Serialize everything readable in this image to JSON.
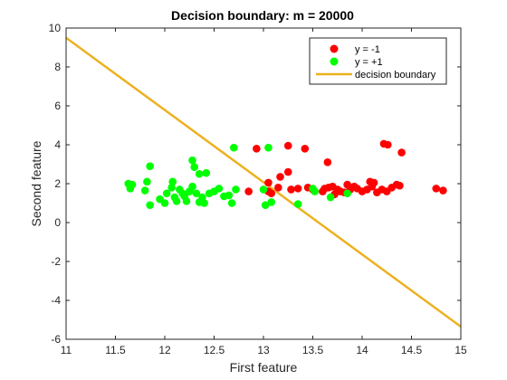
{
  "chart_data": {
    "type": "scatter",
    "title": "Decision boundary: m = 20000",
    "xlabel": "First feature",
    "ylabel": "Second feature",
    "xlim": [
      11,
      15
    ],
    "ylim": [
      -6,
      10
    ],
    "xticks": [
      11,
      11.5,
      12,
      12.5,
      13,
      13.5,
      14,
      14.5,
      15
    ],
    "yticks": [
      -6,
      -4,
      -2,
      0,
      2,
      4,
      6,
      8,
      10
    ],
    "grid": false,
    "legend_position": "top-right",
    "series": [
      {
        "name": "y = -1",
        "color": "#ff0000",
        "points": [
          [
            12.85,
            1.6
          ],
          [
            12.93,
            3.8
          ],
          [
            13.05,
            2.05
          ],
          [
            13.05,
            1.6
          ],
          [
            13.08,
            1.5
          ],
          [
            13.15,
            1.8
          ],
          [
            13.17,
            2.35
          ],
          [
            13.25,
            3.95
          ],
          [
            13.25,
            2.6
          ],
          [
            13.28,
            1.7
          ],
          [
            13.35,
            1.75
          ],
          [
            13.42,
            3.8
          ],
          [
            13.45,
            1.8
          ],
          [
            13.5,
            1.7
          ],
          [
            13.6,
            1.6
          ],
          [
            13.62,
            1.75
          ],
          [
            13.65,
            3.1
          ],
          [
            13.66,
            1.8
          ],
          [
            13.7,
            1.85
          ],
          [
            13.72,
            1.45
          ],
          [
            13.75,
            1.7
          ],
          [
            13.78,
            1.6
          ],
          [
            13.82,
            1.55
          ],
          [
            13.85,
            1.95
          ],
          [
            13.88,
            1.7
          ],
          [
            13.92,
            1.85
          ],
          [
            13.95,
            1.75
          ],
          [
            14.0,
            1.6
          ],
          [
            14.05,
            1.7
          ],
          [
            14.08,
            2.1
          ],
          [
            14.1,
            1.85
          ],
          [
            14.12,
            2.05
          ],
          [
            14.15,
            1.55
          ],
          [
            14.2,
            1.7
          ],
          [
            14.22,
            4.05
          ],
          [
            14.25,
            1.6
          ],
          [
            14.26,
            4.0
          ],
          [
            14.3,
            1.8
          ],
          [
            14.35,
            1.95
          ],
          [
            14.38,
            1.9
          ],
          [
            14.4,
            3.6
          ],
          [
            14.75,
            1.75
          ],
          [
            14.82,
            1.65
          ]
        ]
      },
      {
        "name": "y = +1",
        "color": "#00ff00",
        "points": [
          [
            11.63,
            2.0
          ],
          [
            11.65,
            1.75
          ],
          [
            11.67,
            1.95
          ],
          [
            11.8,
            1.65
          ],
          [
            11.82,
            2.1
          ],
          [
            11.85,
            2.9
          ],
          [
            11.85,
            0.9
          ],
          [
            11.95,
            1.2
          ],
          [
            12.0,
            1.0
          ],
          [
            12.02,
            1.5
          ],
          [
            12.07,
            1.8
          ],
          [
            12.08,
            2.1
          ],
          [
            12.1,
            1.3
          ],
          [
            12.12,
            1.1
          ],
          [
            12.15,
            1.7
          ],
          [
            12.18,
            1.5
          ],
          [
            12.2,
            1.35
          ],
          [
            12.22,
            1.1
          ],
          [
            12.25,
            1.6
          ],
          [
            12.28,
            3.2
          ],
          [
            12.28,
            1.85
          ],
          [
            12.3,
            2.85
          ],
          [
            12.32,
            1.5
          ],
          [
            12.35,
            1.05
          ],
          [
            12.35,
            2.5
          ],
          [
            12.38,
            1.3
          ],
          [
            12.4,
            1.0
          ],
          [
            12.42,
            2.55
          ],
          [
            12.45,
            1.5
          ],
          [
            12.5,
            1.6
          ],
          [
            12.55,
            1.75
          ],
          [
            12.6,
            1.35
          ],
          [
            12.65,
            1.4
          ],
          [
            12.68,
            1.0
          ],
          [
            12.7,
            3.85
          ],
          [
            12.72,
            1.7
          ],
          [
            13.0,
            1.7
          ],
          [
            13.02,
            0.9
          ],
          [
            13.05,
            3.85
          ],
          [
            13.08,
            1.05
          ],
          [
            13.35,
            0.95
          ],
          [
            13.5,
            1.75
          ],
          [
            13.52,
            1.6
          ],
          [
            13.68,
            1.3
          ],
          [
            13.85,
            1.5
          ]
        ]
      }
    ],
    "boundary": {
      "name": "decision boundary",
      "color": "#edb120",
      "x": [
        11,
        15
      ],
      "y": [
        9.5,
        -5.35
      ]
    }
  }
}
